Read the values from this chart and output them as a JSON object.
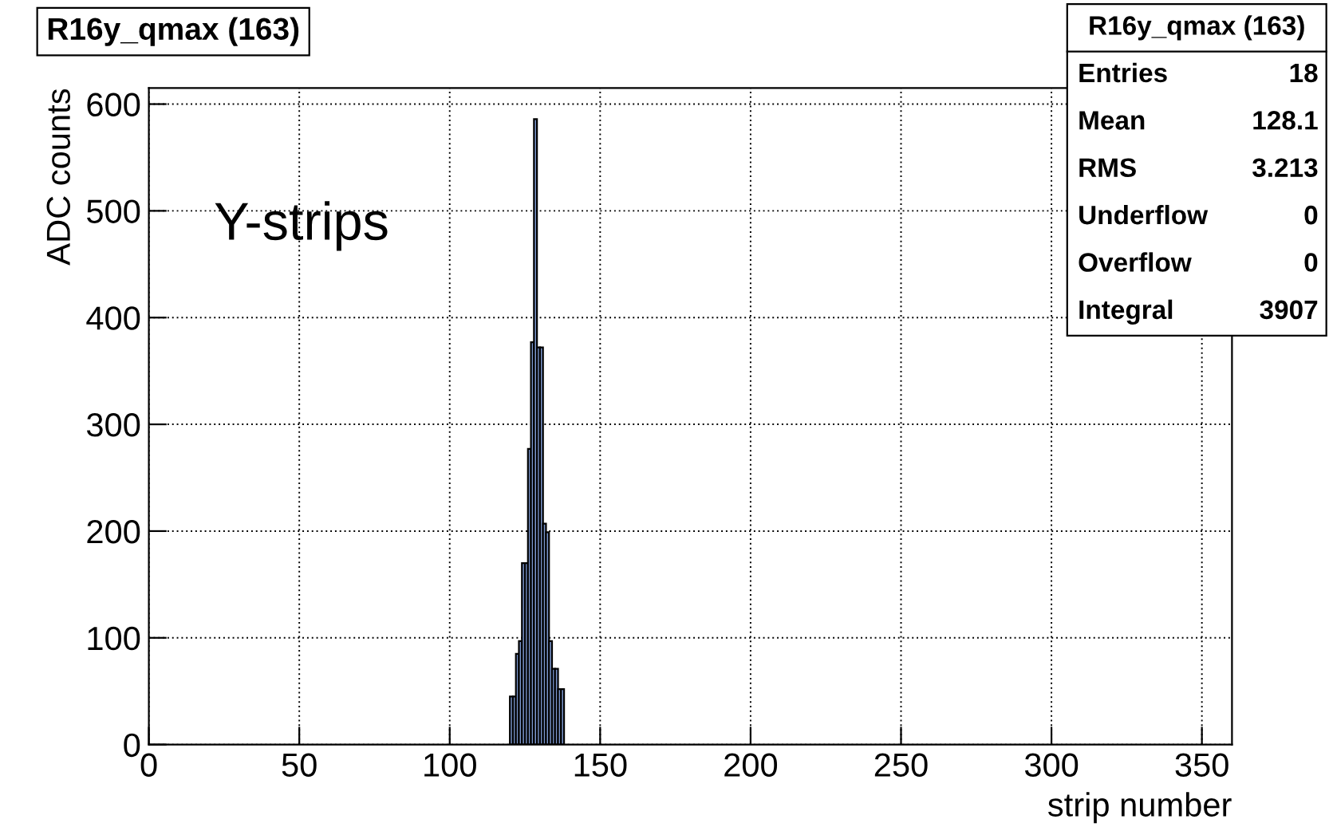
{
  "chart_data": {
    "type": "histogram",
    "title": "R16y_qmax (163)",
    "xlabel": "strip number",
    "ylabel": "ADC counts",
    "bins": [
      120,
      121,
      122,
      123,
      124,
      125,
      126,
      127,
      128,
      129,
      130,
      131,
      132,
      133,
      134,
      135,
      136,
      137,
      138
    ],
    "values": [
      45,
      45,
      85,
      97,
      170,
      170,
      277,
      377,
      586,
      372,
      372,
      207,
      199,
      97,
      71,
      71,
      52,
      52
    ],
    "color": "#7b96cc",
    "xlim": [
      0,
      360
    ],
    "xticks": [
      0,
      50,
      100,
      150,
      200,
      250,
      300,
      350
    ],
    "ylim": [
      0,
      615
    ],
    "yticks": [
      0,
      100,
      200,
      300,
      400,
      500,
      600
    ],
    "grid": true,
    "annotations": [
      "Y-strips",
      "R16y_qmax (163)",
      "Entries",
      "18",
      "Mean",
      "128.1",
      "RMS",
      "3.213",
      "Underflow",
      "0",
      "Overflow",
      "0",
      "Integral",
      "3907"
    ]
  }
}
